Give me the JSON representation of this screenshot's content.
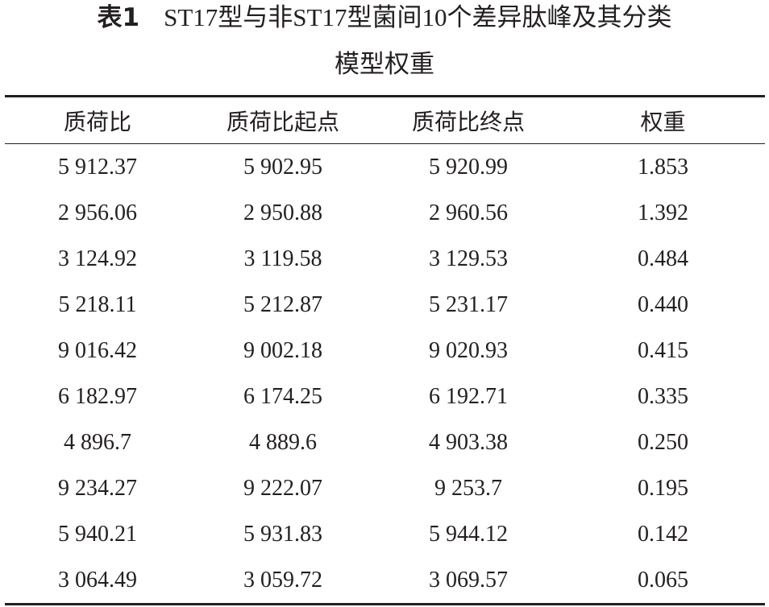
{
  "header": {
    "label": "表1",
    "title_lines": [
      "ST17型与非ST17型菌间10个差异肽峰及其分类",
      "模型权重"
    ]
  },
  "table": {
    "columns": [
      "质荷比",
      "质荷比起点",
      "质荷比终点",
      "权重"
    ],
    "rows": [
      [
        "5 912.37",
        "5 902.95",
        "5 920.99",
        "1.853"
      ],
      [
        "2 956.06",
        "2 950.88",
        "2 960.56",
        "1.392"
      ],
      [
        "3 124.92",
        "3 119.58",
        "3 129.53",
        "0.484"
      ],
      [
        "5 218.11",
        "5 212.87",
        "5 231.17",
        "0.440"
      ],
      [
        "9 016.42",
        "9 002.18",
        "9 020.93",
        "0.415"
      ],
      [
        "6 182.97",
        "6 174.25",
        "6 192.71",
        "0.335"
      ],
      [
        "4 896.7",
        "4 889.6",
        "4 903.38",
        "0.250"
      ],
      [
        "9 234.27",
        "9 222.07",
        "9 253.7",
        "0.195"
      ],
      [
        "5 940.21",
        "5 931.83",
        "5 944.12",
        "0.142"
      ],
      [
        "3 064.49",
        "3 059.72",
        "3 069.57",
        "0.065"
      ]
    ]
  }
}
